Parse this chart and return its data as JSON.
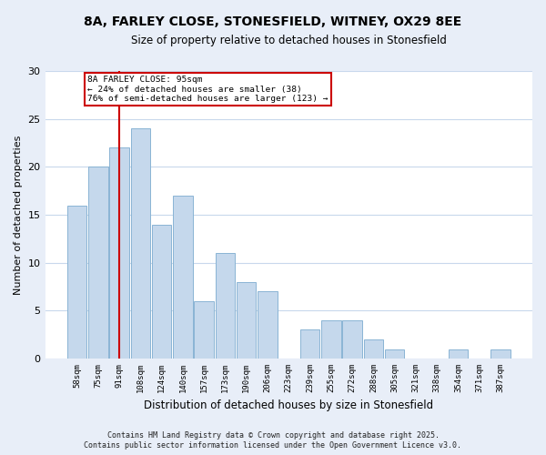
{
  "title": "8A, FARLEY CLOSE, STONESFIELD, WITNEY, OX29 8EE",
  "subtitle": "Size of property relative to detached houses in Stonesfield",
  "xlabel": "Distribution of detached houses by size in Stonesfield",
  "ylabel": "Number of detached properties",
  "categories": [
    "58sqm",
    "75sqm",
    "91sqm",
    "108sqm",
    "124sqm",
    "140sqm",
    "157sqm",
    "173sqm",
    "190sqm",
    "206sqm",
    "223sqm",
    "239sqm",
    "255sqm",
    "272sqm",
    "288sqm",
    "305sqm",
    "321sqm",
    "338sqm",
    "354sqm",
    "371sqm",
    "387sqm"
  ],
  "values": [
    16,
    20,
    22,
    24,
    14,
    17,
    6,
    11,
    8,
    7,
    0,
    3,
    4,
    4,
    2,
    1,
    0,
    0,
    1,
    0,
    1
  ],
  "bar_color": "#c5d8ec",
  "bar_edge_color": "#8ab4d4",
  "highlight_index": 2,
  "highlight_line_color": "#cc0000",
  "ylim": [
    0,
    30
  ],
  "yticks": [
    0,
    5,
    10,
    15,
    20,
    25,
    30
  ],
  "annotation_title": "8A FARLEY CLOSE: 95sqm",
  "annotation_line1": "← 24% of detached houses are smaller (38)",
  "annotation_line2": "76% of semi-detached houses are larger (123) →",
  "footer1": "Contains HM Land Registry data © Crown copyright and database right 2025.",
  "footer2": "Contains public sector information licensed under the Open Government Licence v3.0.",
  "bg_color": "#e8eef8",
  "plot_bg_color": "#ffffff",
  "grid_color": "#c8d8ec"
}
